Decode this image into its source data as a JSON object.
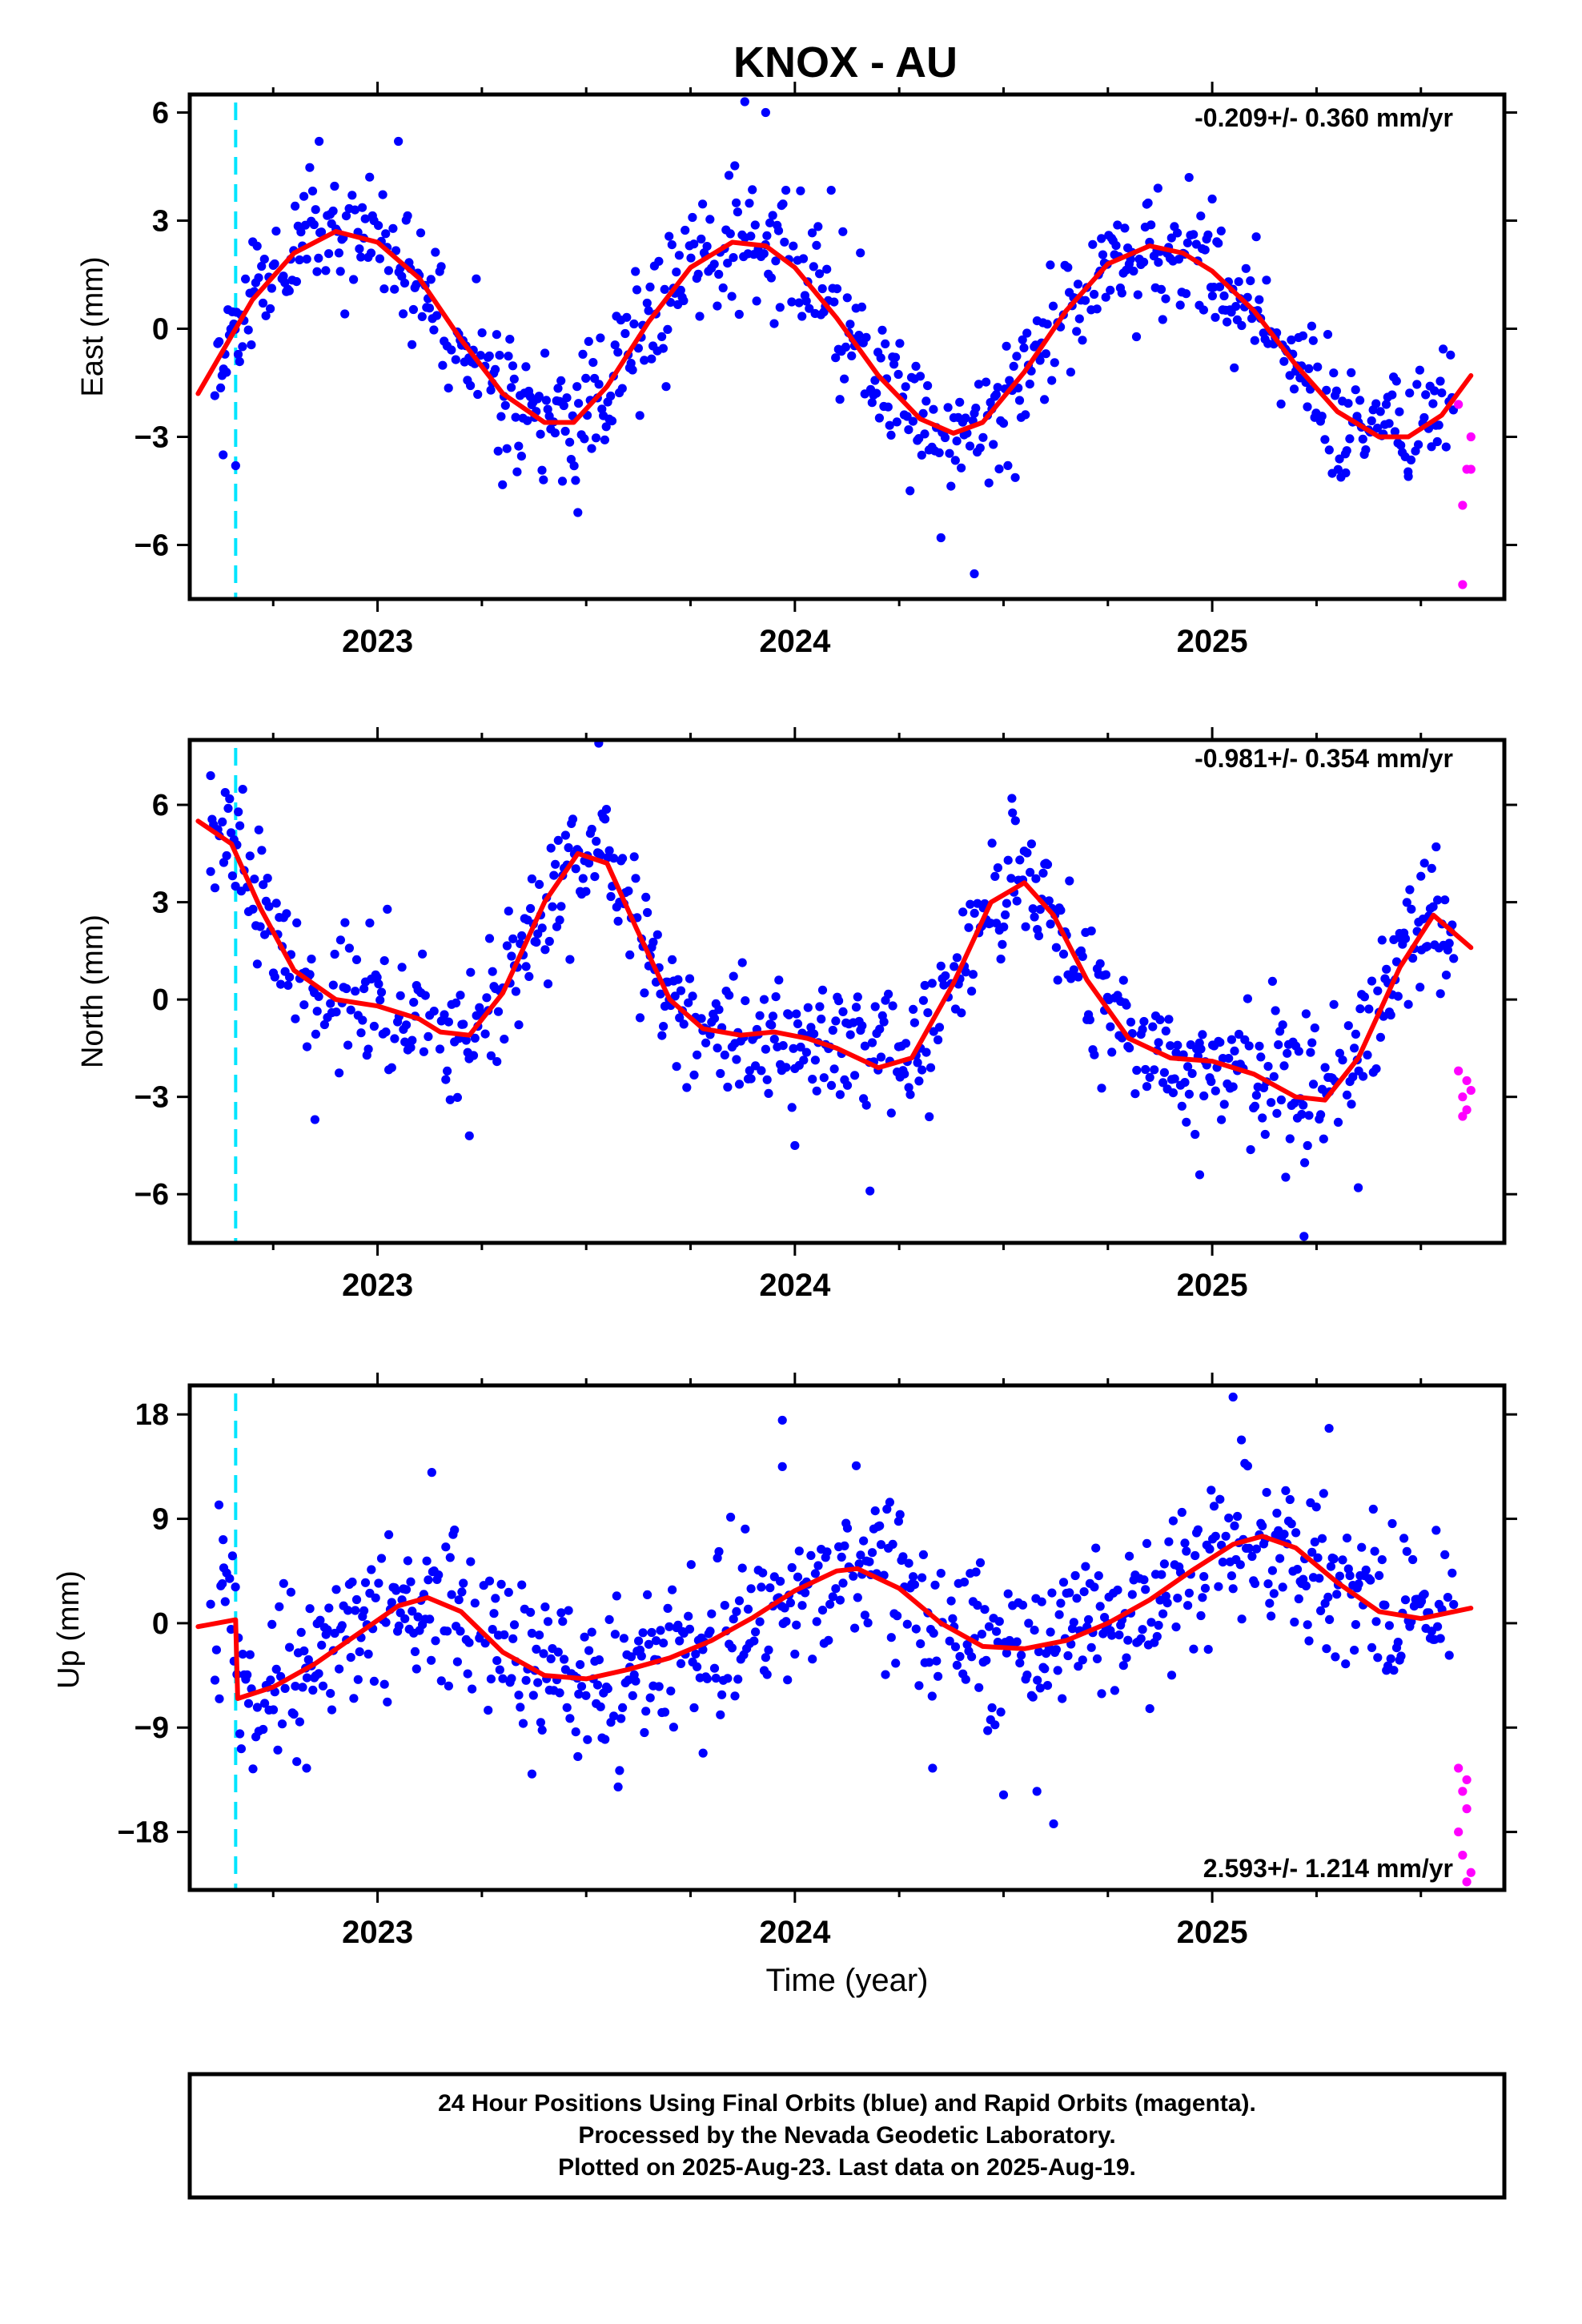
{
  "chart_data": [
    {
      "type": "scatter",
      "title": "KNOX - AU",
      "ylabel": "East (mm)",
      "xlabel": "",
      "rate_label": "-0.209+/- 0.360 mm/yr",
      "rate_position": "top-right",
      "xlim": [
        2022.55,
        2025.7
      ],
      "ylim": [
        -7.5,
        6.5
      ],
      "yticks": [
        -6,
        -3,
        0,
        3,
        6
      ],
      "xticks": [
        2023,
        2024,
        2025
      ],
      "equipment_change_epoch": 2022.66,
      "model": {
        "name": "",
        "x": [
          2022.57,
          2022.7,
          2022.8,
          2022.9,
          2023.0,
          2023.1,
          2023.2,
          2023.3,
          2023.4,
          2023.47,
          2023.55,
          2023.65,
          2023.75,
          2023.85,
          2023.93,
          2024.0,
          2024.1,
          2024.2,
          2024.3,
          2024.38,
          2024.45,
          2024.55,
          2024.65,
          2024.75,
          2024.85,
          2024.93,
          2025.0,
          2025.1,
          2025.2,
          2025.3,
          2025.4,
          2025.47,
          2025.55,
          2025.62
        ],
        "values": [
          -1.8,
          0.8,
          2.1,
          2.7,
          2.4,
          1.4,
          -0.3,
          -1.8,
          -2.6,
          -2.6,
          -1.6,
          0.2,
          1.7,
          2.4,
          2.3,
          1.7,
          0.3,
          -1.3,
          -2.5,
          -2.9,
          -2.6,
          -1.2,
          0.5,
          1.8,
          2.3,
          2.1,
          1.6,
          0.5,
          -1.0,
          -2.3,
          -3.0,
          -3.0,
          -2.4,
          -1.3
        ]
      },
      "series": [
        {
          "name": "Final Orbits",
          "color": "#0000ff",
          "seed": 11,
          "x_start": 2022.61,
          "x_end": 2025.58,
          "step": 0.0035,
          "noise": 0.9,
          "excursions": [
            [
              2022.63,
              -3.5
            ],
            [
              2022.66,
              -3.8
            ],
            [
              2022.86,
              5.2
            ],
            [
              2023.05,
              5.2
            ],
            [
              2023.48,
              -5.1
            ],
            [
              2023.88,
              6.3
            ],
            [
              2023.93,
              6.0
            ],
            [
              2024.35,
              -5.8
            ],
            [
              2024.43,
              -6.8
            ],
            [
              2024.87,
              3.9
            ],
            [
              2025.0,
              3.6
            ],
            [
              2025.32,
              -4.0
            ],
            [
              2025.47,
              -4.1
            ]
          ]
        },
        {
          "name": "Rapid Orbits",
          "color": "#ff00ff",
          "points": [
            [
              2025.59,
              -2.1
            ],
            [
              2025.62,
              -3.0
            ],
            [
              2025.61,
              -3.9
            ],
            [
              2025.62,
              -3.9
            ],
            [
              2025.6,
              -4.9
            ],
            [
              2025.6,
              -7.1
            ]
          ]
        }
      ]
    },
    {
      "type": "scatter",
      "title": "",
      "ylabel": "North (mm)",
      "xlabel": "",
      "rate_label": "-0.981+/- 0.354 mm/yr",
      "rate_position": "top-right",
      "xlim": [
        2022.55,
        2025.7
      ],
      "ylim": [
        -7.5,
        8.0
      ],
      "yticks": [
        -6,
        -3,
        0,
        3,
        6
      ],
      "xticks": [
        2023,
        2024,
        2025
      ],
      "equipment_change_epoch": 2022.66,
      "model": {
        "name": "",
        "x": [
          2022.57,
          2022.65,
          2022.72,
          2022.8,
          2022.9,
          2023.0,
          2023.1,
          2023.15,
          2023.22,
          2023.3,
          2023.4,
          2023.48,
          2023.55,
          2023.62,
          2023.7,
          2023.78,
          2023.87,
          2023.95,
          2024.03,
          2024.1,
          2024.2,
          2024.28,
          2024.38,
          2024.47,
          2024.55,
          2024.62,
          2024.7,
          2024.8,
          2024.9,
          2025.0,
          2025.1,
          2025.2,
          2025.27,
          2025.35,
          2025.45,
          2025.53,
          2025.62
        ],
        "values": [
          5.5,
          4.8,
          2.8,
          0.9,
          0.0,
          -0.2,
          -0.6,
          -1.0,
          -1.1,
          0.2,
          3.0,
          4.5,
          4.2,
          2.2,
          0.0,
          -0.9,
          -1.1,
          -1.0,
          -1.2,
          -1.5,
          -2.1,
          -1.8,
          0.5,
          3.0,
          3.6,
          2.6,
          0.6,
          -1.2,
          -1.8,
          -1.9,
          -2.3,
          -3.0,
          -3.1,
          -1.8,
          1.0,
          2.6,
          1.6
        ]
      },
      "series": [
        {
          "name": "Final Orbits",
          "color": "#0000ff",
          "seed": 23,
          "x_start": 2022.6,
          "x_end": 2025.58,
          "step": 0.0035,
          "noise": 1.0,
          "excursions": [
            [
              2022.6,
              6.9
            ],
            [
              2022.85,
              -3.7
            ],
            [
              2023.22,
              -4.2
            ],
            [
              2023.53,
              7.9
            ],
            [
              2024.0,
              -4.5
            ],
            [
              2024.18,
              -5.9
            ],
            [
              2024.52,
              6.2
            ],
            [
              2024.97,
              -5.4
            ],
            [
              2025.22,
              -7.3
            ],
            [
              2025.35,
              -5.8
            ],
            [
              2025.5,
              3.8
            ]
          ]
        },
        {
          "name": "Rapid Orbits",
          "color": "#ff00ff",
          "points": [
            [
              2025.59,
              -2.2
            ],
            [
              2025.61,
              -2.5
            ],
            [
              2025.62,
              -2.8
            ],
            [
              2025.6,
              -3.0
            ],
            [
              2025.61,
              -3.4
            ],
            [
              2025.6,
              -3.6
            ]
          ]
        }
      ]
    },
    {
      "type": "scatter",
      "title": "",
      "ylabel": "Up (mm)",
      "xlabel": "Time (year)",
      "rate_label": "2.593+/- 1.214 mm/yr",
      "rate_position": "bottom-right",
      "xlim": [
        2022.55,
        2025.7
      ],
      "ylim": [
        -23,
        20.5
      ],
      "yticks": [
        -18,
        -9,
        0,
        9,
        18
      ],
      "xticks": [
        2023,
        2024,
        2025
      ],
      "equipment_change_epoch": 2022.66,
      "model": {
        "name": "",
        "x": [
          2022.57,
          2022.66,
          2022.665,
          2022.75,
          2022.85,
          2022.95,
          2023.05,
          2023.12,
          2023.2,
          2023.3,
          2023.4,
          2023.5,
          2023.6,
          2023.7,
          2023.8,
          2023.9,
          2024.0,
          2024.1,
          2024.15,
          2024.25,
          2024.35,
          2024.45,
          2024.55,
          2024.65,
          2024.75,
          2024.85,
          2024.95,
          2025.05,
          2025.12,
          2025.2,
          2025.3,
          2025.4,
          2025.5,
          2025.62
        ],
        "values": [
          -0.3,
          0.3,
          -6.5,
          -5.5,
          -3.5,
          -1.0,
          1.5,
          2.2,
          1.0,
          -2.5,
          -4.5,
          -4.8,
          -4.0,
          -3.0,
          -1.5,
          0.5,
          2.8,
          4.5,
          4.7,
          3.0,
          0.0,
          -2.0,
          -2.2,
          -1.5,
          0.0,
          2.0,
          4.5,
          6.8,
          7.5,
          6.5,
          3.5,
          1.0,
          0.4,
          1.3
        ]
      },
      "series": [
        {
          "name": "Final Orbits",
          "color": "#0000ff",
          "seed": 37,
          "x_start": 2022.6,
          "x_end": 2025.58,
          "step": 0.0035,
          "noise": 3.2,
          "excursions": [
            [
              2022.62,
              10.2
            ],
            [
              2022.63,
              7.2
            ],
            [
              2022.83,
              -12.5
            ],
            [
              2023.13,
              13.0
            ],
            [
              2023.37,
              -13.0
            ],
            [
              2023.48,
              -11.5
            ],
            [
              2023.78,
              -11.2
            ],
            [
              2023.97,
              17.5
            ],
            [
              2023.97,
              13.5
            ],
            [
              2024.33,
              -12.5
            ],
            [
              2024.5,
              -14.8
            ],
            [
              2024.58,
              -14.5
            ],
            [
              2024.62,
              -17.3
            ],
            [
              2025.05,
              19.5
            ],
            [
              2025.07,
              15.8
            ],
            [
              2025.28,
              16.8
            ]
          ]
        },
        {
          "name": "Rapid Orbits",
          "color": "#ff00ff",
          "points": [
            [
              2025.59,
              -12.5
            ],
            [
              2025.61,
              -13.5
            ],
            [
              2025.6,
              -14.5
            ],
            [
              2025.61,
              -16.0
            ],
            [
              2025.59,
              -18.0
            ],
            [
              2025.6,
              -20.0
            ],
            [
              2025.62,
              -21.5
            ],
            [
              2025.61,
              -22.3
            ]
          ]
        }
      ]
    }
  ],
  "footer": {
    "line1": "24 Hour Positions Using Final Orbits (blue) and Rapid Orbits (magenta).",
    "line2": "Processed by the Nevada Geodetic Laboratory.",
    "line3": "Plotted on 2025-Aug-23. Last data on 2025-Aug-19."
  },
  "colors": {
    "final_orbits": "#0000ff",
    "rapid_orbits": "#ff00ff",
    "model_curve": "#ff0000",
    "equipment_change": "#00e5ff"
  }
}
